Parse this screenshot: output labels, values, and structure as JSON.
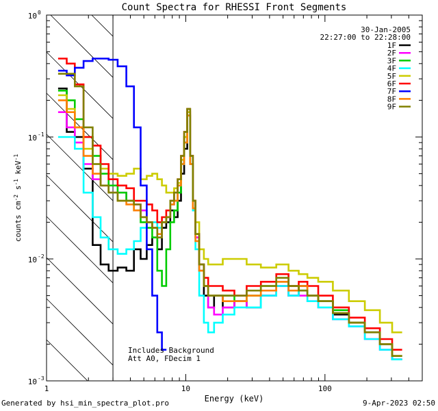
{
  "chart_data": {
    "type": "line",
    "title": "Count Spectra for RHESSI Front Segments",
    "xlabel": "Energy (keV)",
    "ylabel_parts": [
      "counts cm",
      "-2",
      " s",
      "-1",
      " keV",
      "-1"
    ],
    "xscale": "log",
    "yscale": "log",
    "xlim": [
      1,
      500
    ],
    "ylim": [
      0.001,
      1
    ],
    "x_ticks": [
      {
        "value": 1,
        "label": "1"
      },
      {
        "value": 10,
        "label": "10"
      },
      {
        "value": 100,
        "label": "100"
      }
    ],
    "y_ticks": [
      {
        "value": 1,
        "base": "10",
        "exp": "0"
      },
      {
        "value": 0.1,
        "base": "10",
        "exp": "-1"
      },
      {
        "value": 0.01,
        "base": "10",
        "exp": "-2"
      },
      {
        "value": 0.001,
        "base": "10",
        "exp": "-3"
      }
    ],
    "shaded_region_below_keV": 3,
    "date": "30-Jan-2005",
    "time_range": "22:27:00 to 22:28:00",
    "annotations": [
      "Includes Background",
      "Att A0, FDecim 1"
    ],
    "series": [
      {
        "name": "1F",
        "color": "#000000",
        "x": [
          1.3,
          1.5,
          1.7,
          2.0,
          2.3,
          2.6,
          3.0,
          3.5,
          4.0,
          4.5,
          5.0,
          5.5,
          6.0,
          6.5,
          7.0,
          7.5,
          8.0,
          8.5,
          9.0,
          9.5,
          10.0,
          10.5,
          11.0,
          11.5,
          12.0,
          13.0,
          14.0,
          15.0,
          17.0,
          20.0,
          25.0,
          30.0,
          40.0,
          50.0,
          60.0,
          70.0,
          80.0,
          100.0,
          130.0,
          170.0,
          220.0,
          280.0,
          330.0
        ],
        "y": [
          0.25,
          0.11,
          0.1,
          0.055,
          0.013,
          0.009,
          0.008,
          0.0085,
          0.008,
          0.012,
          0.01,
          0.013,
          0.015,
          0.012,
          0.018,
          0.02,
          0.025,
          0.022,
          0.03,
          0.05,
          0.08,
          0.15,
          0.06,
          0.025,
          0.015,
          0.008,
          0.005,
          0.004,
          0.005,
          0.004,
          0.0045,
          0.004,
          0.005,
          0.006,
          0.005,
          0.006,
          0.005,
          0.0045,
          0.0035,
          0.003,
          0.0025,
          0.002,
          0.0015
        ]
      },
      {
        "name": "2F",
        "color": "#ff00ff",
        "x": [
          1.3,
          1.5,
          1.7,
          2.0,
          2.3,
          2.6,
          3.0,
          3.5,
          4.0,
          4.5,
          5.0,
          5.5,
          6.0,
          6.5,
          7.0,
          7.5,
          8.0,
          8.5,
          9.0,
          9.5,
          10.0,
          10.5,
          11.0,
          11.5,
          12.0,
          13.0,
          14.0,
          15.0,
          17.0,
          20.0,
          25.0,
          30.0,
          40.0,
          50.0,
          60.0,
          70.0,
          80.0,
          100.0,
          130.0,
          170.0,
          220.0,
          280.0,
          330.0
        ],
        "y": [
          0.16,
          0.12,
          0.09,
          0.06,
          0.045,
          0.04,
          0.035,
          0.035,
          0.03,
          0.028,
          0.025,
          0.02,
          0.018,
          0.015,
          0.02,
          0.022,
          0.028,
          0.03,
          0.04,
          0.06,
          0.09,
          0.16,
          0.07,
          0.03,
          0.015,
          0.009,
          0.006,
          0.004,
          0.0035,
          0.004,
          0.0045,
          0.004,
          0.005,
          0.006,
          0.005,
          0.005,
          0.0045,
          0.004,
          0.0032,
          0.0028,
          0.0022,
          0.0018,
          0.0015
        ]
      },
      {
        "name": "3F",
        "color": "#00cc00",
        "x": [
          1.3,
          1.5,
          1.7,
          2.0,
          2.3,
          2.6,
          3.0,
          3.5,
          4.0,
          4.5,
          5.0,
          5.5,
          6.0,
          6.5,
          7.0,
          7.5,
          8.0,
          8.5,
          9.0,
          9.5,
          10.0,
          10.5,
          11.0,
          11.5,
          12.0,
          13.0,
          14.0,
          15.0,
          17.0,
          20.0,
          25.0,
          30.0,
          40.0,
          50.0,
          60.0,
          70.0,
          80.0,
          100.0,
          130.0,
          170.0,
          220.0,
          280.0,
          330.0
        ],
        "y": [
          0.24,
          0.2,
          0.14,
          0.1,
          0.07,
          0.05,
          0.04,
          0.035,
          0.03,
          0.025,
          0.02,
          0.018,
          0.015,
          0.008,
          0.006,
          0.012,
          0.02,
          0.025,
          0.035,
          0.06,
          0.1,
          0.17,
          0.07,
          0.03,
          0.016,
          0.009,
          0.006,
          0.005,
          0.005,
          0.005,
          0.0045,
          0.005,
          0.006,
          0.0065,
          0.006,
          0.0055,
          0.005,
          0.0045,
          0.0038,
          0.003,
          0.0025,
          0.002,
          0.0016
        ]
      },
      {
        "name": "4F",
        "color": "#00ffff",
        "x": [
          1.3,
          1.5,
          1.7,
          2.0,
          2.3,
          2.6,
          3.0,
          3.5,
          4.0,
          4.5,
          5.0,
          5.5,
          6.0,
          6.5,
          7.0,
          7.5,
          8.0,
          8.5,
          9.0,
          9.5,
          10.0,
          10.5,
          11.0,
          11.5,
          12.0,
          13.0,
          14.0,
          15.0,
          17.0,
          20.0,
          25.0,
          30.0,
          40.0,
          50.0,
          60.0,
          70.0,
          80.0,
          100.0,
          130.0,
          170.0,
          220.0,
          280.0,
          330.0
        ],
        "y": [
          0.1,
          0.1,
          0.08,
          0.035,
          0.022,
          0.015,
          0.012,
          0.011,
          0.012,
          0.014,
          0.018,
          0.02,
          0.02,
          0.018,
          0.02,
          0.022,
          0.028,
          0.03,
          0.04,
          0.06,
          0.09,
          0.15,
          0.06,
          0.025,
          0.012,
          0.005,
          0.003,
          0.0025,
          0.003,
          0.0035,
          0.004,
          0.004,
          0.005,
          0.006,
          0.005,
          0.0055,
          0.0045,
          0.004,
          0.0032,
          0.0028,
          0.0022,
          0.0018,
          0.0015
        ]
      },
      {
        "name": "5F",
        "color": "#cccc00",
        "x": [
          1.3,
          1.5,
          1.7,
          2.0,
          2.3,
          2.6,
          3.0,
          3.5,
          4.0,
          4.5,
          5.0,
          5.5,
          6.0,
          6.5,
          7.0,
          7.5,
          8.0,
          8.5,
          9.0,
          9.5,
          10.0,
          10.5,
          11.0,
          11.5,
          12.0,
          13.0,
          14.0,
          15.0,
          17.0,
          20.0,
          25.0,
          30.0,
          40.0,
          50.0,
          60.0,
          70.0,
          80.0,
          100.0,
          130.0,
          170.0,
          220.0,
          280.0,
          330.0
        ],
        "y": [
          0.22,
          0.17,
          0.12,
          0.08,
          0.06,
          0.055,
          0.05,
          0.048,
          0.05,
          0.055,
          0.045,
          0.048,
          0.05,
          0.045,
          0.04,
          0.035,
          0.035,
          0.038,
          0.042,
          0.065,
          0.1,
          0.16,
          0.07,
          0.03,
          0.02,
          0.012,
          0.01,
          0.009,
          0.009,
          0.01,
          0.01,
          0.009,
          0.0085,
          0.009,
          0.008,
          0.0075,
          0.007,
          0.0065,
          0.0055,
          0.0045,
          0.0038,
          0.003,
          0.0025
        ]
      },
      {
        "name": "6F",
        "color": "#ff0000",
        "x": [
          1.3,
          1.5,
          1.7,
          2.0,
          2.3,
          2.6,
          3.0,
          3.5,
          4.0,
          4.5,
          5.0,
          5.5,
          6.0,
          6.5,
          7.0,
          7.5,
          8.0,
          8.5,
          9.0,
          9.5,
          10.0,
          10.5,
          11.0,
          11.5,
          12.0,
          13.0,
          14.0,
          15.0,
          17.0,
          20.0,
          25.0,
          30.0,
          40.0,
          50.0,
          60.0,
          70.0,
          80.0,
          100.0,
          130.0,
          170.0,
          220.0,
          280.0,
          330.0
        ],
        "y": [
          0.44,
          0.4,
          0.27,
          0.1,
          0.085,
          0.06,
          0.045,
          0.04,
          0.038,
          0.03,
          0.03,
          0.028,
          0.025,
          0.02,
          0.022,
          0.025,
          0.03,
          0.035,
          0.045,
          0.07,
          0.11,
          0.17,
          0.07,
          0.03,
          0.016,
          0.009,
          0.007,
          0.006,
          0.006,
          0.0055,
          0.005,
          0.006,
          0.0065,
          0.0075,
          0.006,
          0.0065,
          0.006,
          0.005,
          0.004,
          0.0033,
          0.0027,
          0.0022,
          0.0018
        ]
      },
      {
        "name": "7F",
        "color": "#0000ff",
        "x": [
          1.3,
          1.5,
          1.7,
          2.0,
          2.3,
          2.6,
          3.0,
          3.5,
          4.0,
          4.5,
          5.0,
          5.5,
          6.0,
          6.5,
          7.0
        ],
        "y": [
          0.35,
          0.32,
          0.37,
          0.42,
          0.44,
          0.44,
          0.43,
          0.38,
          0.26,
          0.12,
          0.04,
          0.012,
          0.005,
          0.0025,
          0.0018
        ]
      },
      {
        "name": "8F",
        "color": "#ff7f00",
        "x": [
          1.3,
          1.5,
          1.7,
          2.0,
          2.3,
          2.6,
          3.0,
          3.5,
          4.0,
          4.5,
          5.0,
          5.5,
          6.0,
          6.5,
          7.0,
          7.5,
          8.0,
          8.5,
          9.0,
          9.5,
          10.0,
          10.5,
          11.0,
          11.5,
          12.0,
          13.0,
          14.0,
          15.0,
          17.0,
          20.0,
          25.0,
          30.0,
          40.0,
          50.0,
          60.0,
          70.0,
          80.0,
          100.0,
          130.0,
          170.0,
          220.0,
          280.0,
          330.0
        ],
        "y": [
          0.2,
          0.16,
          0.12,
          0.07,
          0.05,
          0.04,
          0.035,
          0.03,
          0.028,
          0.025,
          0.022,
          0.02,
          0.018,
          0.016,
          0.02,
          0.022,
          0.028,
          0.03,
          0.04,
          0.06,
          0.09,
          0.15,
          0.06,
          0.026,
          0.014,
          0.008,
          0.006,
          0.005,
          0.005,
          0.0045,
          0.0045,
          0.005,
          0.0055,
          0.0065,
          0.0055,
          0.006,
          0.005,
          0.0045,
          0.0036,
          0.003,
          0.0025,
          0.002,
          0.0016
        ]
      },
      {
        "name": "9F",
        "color": "#808000",
        "x": [
          1.3,
          1.5,
          1.7,
          2.0,
          2.3,
          2.6,
          3.0,
          3.5,
          4.0,
          4.5,
          5.0,
          5.5,
          6.0,
          6.5,
          7.0,
          7.5,
          8.0,
          8.5,
          9.0,
          9.5,
          10.0,
          10.5,
          11.0,
          11.5,
          12.0,
          13.0,
          14.0,
          15.0,
          17.0,
          20.0,
          25.0,
          30.0,
          40.0,
          50.0,
          60.0,
          70.0,
          80.0,
          100.0,
          130.0,
          170.0,
          220.0,
          280.0,
          330.0
        ],
        "y": [
          0.33,
          0.33,
          0.26,
          0.12,
          0.06,
          0.04,
          0.035,
          0.03,
          0.03,
          0.028,
          0.022,
          0.02,
          0.018,
          0.015,
          0.02,
          0.022,
          0.03,
          0.035,
          0.045,
          0.07,
          0.11,
          0.17,
          0.07,
          0.03,
          0.016,
          0.009,
          0.006,
          0.005,
          0.005,
          0.005,
          0.005,
          0.0055,
          0.006,
          0.007,
          0.006,
          0.0055,
          0.005,
          0.0045,
          0.0036,
          0.003,
          0.0025,
          0.002,
          0.0016
        ]
      }
    ]
  },
  "footer": {
    "left": "Generated by hsi_min_spectra_plot.pro",
    "right": "9-Apr-2023 02:50"
  }
}
